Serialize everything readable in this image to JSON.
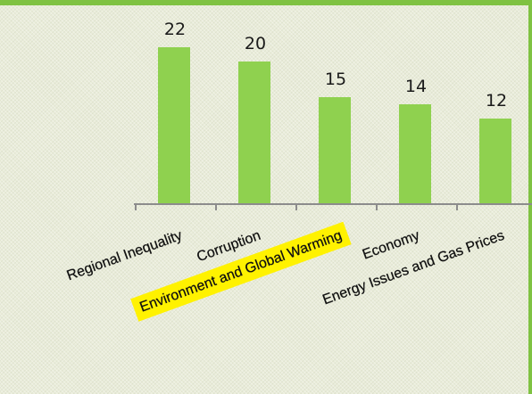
{
  "chart_data": {
    "type": "bar",
    "categories": [
      "Regional Inequality",
      "Corruption",
      "Environment and Global Warming",
      "Economy",
      "Energy Issues and Gas Prices"
    ],
    "values": [
      22,
      20,
      15,
      14,
      12
    ],
    "highlighted_category": "Environment and Global Warming",
    "title": "",
    "xlabel": "",
    "ylabel": "",
    "ylim": [
      0,
      24
    ],
    "grid": false,
    "legend": "none",
    "colors": {
      "bar": "#8fd14f",
      "highlight": "#fff200",
      "axis": "#8c8c8c",
      "accent_border": "#7fc242"
    }
  }
}
